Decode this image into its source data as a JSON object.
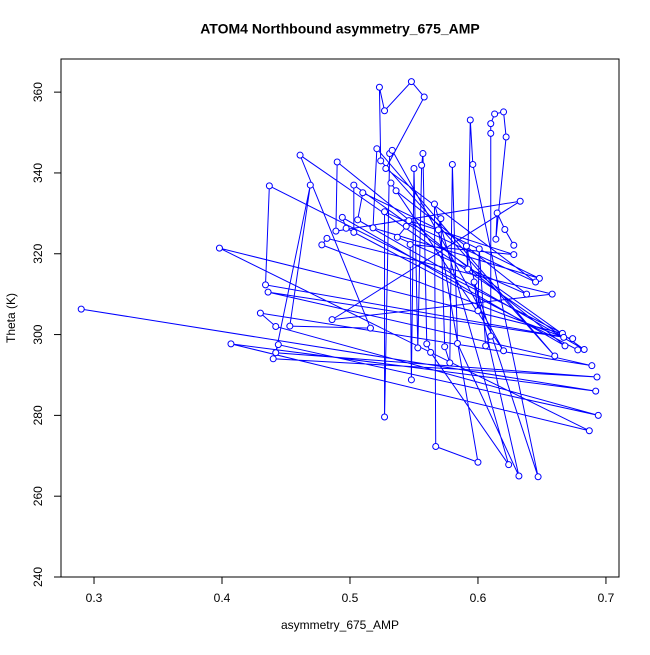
{
  "chart_data": {
    "type": "line",
    "title": "ATOM4 Northbound asymmetry_675_AMP",
    "x_label": "asymmetry_675_AMP",
    "y_label": "Theta (K)",
    "xlim": [
      0.2742,
      0.7102
    ],
    "ylim": [
      240,
      368.2
    ],
    "xticks": [
      0.3,
      0.4,
      0.5,
      0.6,
      0.7
    ],
    "yticks": [
      240,
      260,
      280,
      300,
      320,
      340,
      360
    ],
    "markers": true,
    "x": [
      0.29,
      0.692,
      0.407,
      0.687,
      0.398,
      0.666,
      0.437,
      0.434,
      0.674,
      0.436,
      0.689,
      0.43,
      0.442,
      0.694,
      0.444,
      0.44,
      0.693,
      0.442,
      0.469,
      0.453,
      0.516,
      0.461,
      0.667,
      0.478,
      0.482,
      0.658,
      0.486,
      0.633,
      0.489,
      0.49,
      0.668,
      0.494,
      0.497,
      0.678,
      0.503,
      0.503,
      0.683,
      0.506,
      0.51,
      0.648,
      0.518,
      0.521,
      0.66,
      0.524,
      0.523,
      0.527,
      0.548,
      0.558,
      0.528,
      0.645,
      0.527,
      0.527,
      0.531,
      0.533,
      0.62,
      0.532,
      0.536,
      0.638,
      0.537,
      0.544,
      0.546,
      0.628,
      0.547,
      0.548,
      0.55,
      0.553,
      0.556,
      0.557,
      0.56,
      0.563,
      0.624,
      0.566,
      0.567,
      0.6,
      0.569,
      0.571,
      0.574,
      0.578,
      0.58,
      0.584,
      0.632,
      0.591,
      0.592,
      0.594,
      0.596,
      0.647,
      0.597,
      0.6,
      0.601,
      0.606,
      0.61,
      0.61,
      0.61,
      0.613,
      0.62,
      0.622,
      0.614,
      0.615,
      0.621,
      0.628
    ],
    "series": [
      {
        "name": "Theta",
        "color": "#0000ff",
        "values": [
          306.3,
          286,
          297.7,
          276.2,
          321.4,
          300.3,
          336.8,
          312.3,
          299,
          310.5,
          292.3,
          305.3,
          302,
          280,
          297.5,
          294,
          289.5,
          295.5,
          337,
          302.1,
          301.6,
          344.4,
          299.3,
          322.2,
          323.8,
          310,
          303.7,
          333,
          325.6,
          342.7,
          297.2,
          329,
          326.3,
          296.2,
          325.3,
          337,
          296.3,
          328.4,
          335.1,
          313.9,
          326.4,
          346,
          294.7,
          343,
          361.2,
          355.4,
          362.6,
          358.8,
          341.1,
          313,
          330.4,
          279.6,
          344.8,
          345.6,
          296,
          337.5,
          335.6,
          310,
          324.1,
          326.8,
          328.2,
          319.8,
          322.3,
          288.8,
          341.1,
          296.7,
          341.9,
          344.8,
          297.7,
          295.6,
          267.8,
          332.3,
          272.3,
          268.4,
          325.9,
          328.7,
          297,
          293,
          342.1,
          297.8,
          265,
          321.9,
          316.2,
          353.1,
          342.1,
          264.8,
          313,
          305.9,
          321.2,
          297.2,
          299.6,
          349.8,
          352.2,
          354.6,
          355.1,
          348.9,
          323.6,
          330.1,
          326,
          322.1
        ]
      }
    ]
  }
}
